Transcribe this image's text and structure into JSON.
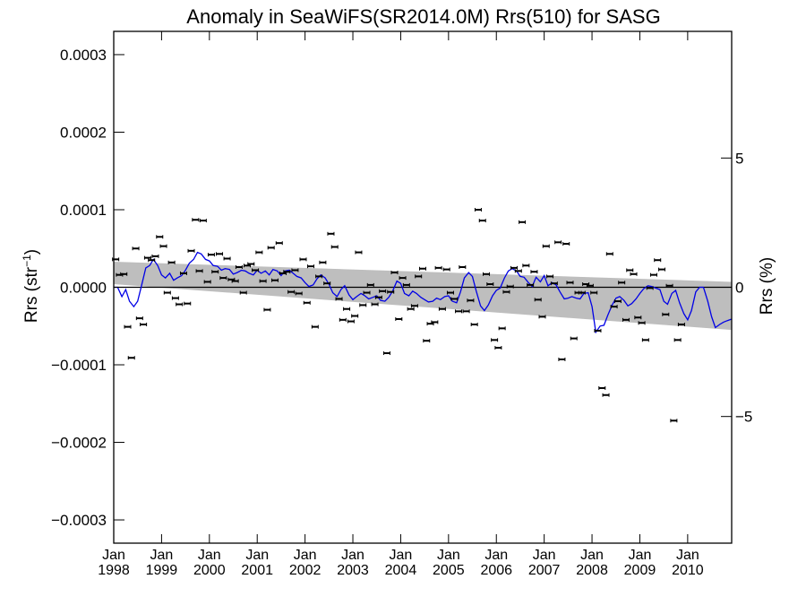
{
  "chart_data": {
    "type": "scatter",
    "title": "Anomaly in SeaWiFS(SR2014.0M) Rrs(510) for SASG",
    "ylabel_main": "Rrs (str",
    "ylabel_sup": "−1",
    "ylabel_close": ")",
    "y2label": "Rrs (%)",
    "xlim": [
      1998.0,
      2010.92
    ],
    "ylim": [
      -0.00033,
      0.00033
    ],
    "y2lim": [
      -9.9,
      9.9
    ],
    "yticks": [
      {
        "value": 0.0003,
        "label": "0.0003"
      },
      {
        "value": 0.0002,
        "label": "0.0002"
      },
      {
        "value": 0.0001,
        "label": "0.0001"
      },
      {
        "value": 0.0,
        "label": "0.0000"
      },
      {
        "value": -0.0001,
        "label": "−0.0001"
      },
      {
        "value": -0.0002,
        "label": "−0.0002"
      },
      {
        "value": -0.0003,
        "label": "−0.0003"
      }
    ],
    "y2ticks": [
      {
        "value": 5,
        "label": "5"
      },
      {
        "value": 0,
        "label": "0"
      },
      {
        "value": -5,
        "label": "−5"
      }
    ],
    "xticks": [
      {
        "value": 1998,
        "month": "Jan",
        "year": "1998"
      },
      {
        "value": 1999,
        "month": "Jan",
        "year": "1999"
      },
      {
        "value": 2000,
        "month": "Jan",
        "year": "2000"
      },
      {
        "value": 2001,
        "month": "Jan",
        "year": "2001"
      },
      {
        "value": 2002,
        "month": "Jan",
        "year": "2002"
      },
      {
        "value": 2003,
        "month": "Jan",
        "year": "2003"
      },
      {
        "value": 2004,
        "month": "Jan",
        "year": "2004"
      },
      {
        "value": 2005,
        "month": "Jan",
        "year": "2005"
      },
      {
        "value": 2006,
        "month": "Jan",
        "year": "2006"
      },
      {
        "value": 2007,
        "month": "Jan",
        "year": "2007"
      },
      {
        "value": 2008,
        "month": "Jan",
        "year": "2008"
      },
      {
        "value": 2009,
        "month": "Jan",
        "year": "2009"
      },
      {
        "value": 2010,
        "month": "Jan",
        "year": "2010"
      }
    ],
    "colors": {
      "line": "#0000e6",
      "band": "#bebebe",
      "points": "#000000",
      "zero": "#000000"
    },
    "trend_band": {
      "start": {
        "x": 1998.0,
        "upper": 3.3e-05,
        "lower": 4e-06
      },
      "end": {
        "x": 2010.92,
        "upper": 7e-06,
        "lower": -5.5e-05
      }
    },
    "points": [
      [
        1998.04,
        3.6e-05
      ],
      [
        1998.12,
        1.6e-05
      ],
      [
        1998.21,
        1.7e-05
      ],
      [
        1998.29,
        -5.1e-05
      ],
      [
        1998.37,
        -9.1e-05
      ],
      [
        1998.46,
        5e-05
      ],
      [
        1998.54,
        -4e-05
      ],
      [
        1998.62,
        -4.8e-05
      ],
      [
        1998.71,
        3.8e-05
      ],
      [
        1998.79,
        3.5e-05
      ],
      [
        1998.87,
        4e-05
      ],
      [
        1998.96,
        6.5e-05
      ],
      [
        1999.04,
        5.3e-05
      ],
      [
        1999.12,
        -7e-06
      ],
      [
        1999.21,
        3.2e-05
      ],
      [
        1999.29,
        -1.4e-05
      ],
      [
        1999.37,
        -2.2e-05
      ],
      [
        1999.46,
        1.8e-05
      ],
      [
        1999.54,
        -2.1e-05
      ],
      [
        1999.62,
        4.7e-05
      ],
      [
        1999.71,
        8.7e-05
      ],
      [
        1999.79,
        2.1e-05
      ],
      [
        1999.87,
        8.6e-05
      ],
      [
        1999.96,
        7e-06
      ],
      [
        2000.04,
        4.2e-05
      ],
      [
        2000.12,
        2e-05
      ],
      [
        2000.21,
        4.3e-05
      ],
      [
        2000.29,
        1.2e-05
      ],
      [
        2000.37,
        3.7e-05
      ],
      [
        2000.46,
        1e-05
      ],
      [
        2000.54,
        8e-06
      ],
      [
        2000.62,
        2.6e-05
      ],
      [
        2000.71,
        -7e-06
      ],
      [
        2000.79,
        2.8e-05
      ],
      [
        2000.87,
        3e-05
      ],
      [
        2000.96,
        2.2e-05
      ],
      [
        2001.04,
        4.5e-05
      ],
      [
        2001.12,
        8e-06
      ],
      [
        2001.21,
        -2.9e-05
      ],
      [
        2001.29,
        5.1e-05
      ],
      [
        2001.37,
        9e-06
      ],
      [
        2001.46,
        5.7e-05
      ],
      [
        2001.54,
        1.8e-05
      ],
      [
        2001.62,
        2e-05
      ],
      [
        2001.71,
        -6e-06
      ],
      [
        2001.79,
        2.2e-05
      ],
      [
        2001.87,
        -8e-06
      ],
      [
        2001.96,
        3.6e-05
      ],
      [
        2002.04,
        -2e-05
      ],
      [
        2002.12,
        2.7e-05
      ],
      [
        2002.21,
        -5.1e-05
      ],
      [
        2002.29,
        1.4e-05
      ],
      [
        2002.37,
        3.2e-05
      ],
      [
        2002.46,
        5e-06
      ],
      [
        2002.54,
        6.9e-05
      ],
      [
        2002.62,
        5.2e-05
      ],
      [
        2002.71,
        -1.5e-05
      ],
      [
        2002.79,
        -4.2e-05
      ],
      [
        2002.87,
        -2.8e-05
      ],
      [
        2002.96,
        -4.4e-05
      ],
      [
        2003.04,
        -3.7e-05
      ],
      [
        2003.12,
        4.5e-05
      ],
      [
        2003.21,
        -2.3e-05
      ],
      [
        2003.29,
        -7e-06
      ],
      [
        2003.37,
        3e-06
      ],
      [
        2003.46,
        -2.2e-05
      ],
      [
        2003.54,
        -1.3e-05
      ],
      [
        2003.62,
        -5e-06
      ],
      [
        2003.71,
        -8.5e-05
      ],
      [
        2003.79,
        -6e-06
      ],
      [
        2003.87,
        1.9e-05
      ],
      [
        2003.96,
        -4.1e-05
      ],
      [
        2004.04,
        1.2e-05
      ],
      [
        2004.12,
        3e-06
      ],
      [
        2004.21,
        -2.8e-05
      ],
      [
        2004.29,
        -2.4e-05
      ],
      [
        2004.37,
        1.4e-05
      ],
      [
        2004.46,
        2.4e-05
      ],
      [
        2004.54,
        -6.9e-05
      ],
      [
        2004.62,
        -4.7e-05
      ],
      [
        2004.71,
        -4.5e-05
      ],
      [
        2004.79,
        2.5e-05
      ],
      [
        2004.87,
        -2.8e-05
      ],
      [
        2004.96,
        2.3e-05
      ],
      [
        2005.04,
        -7e-06
      ],
      [
        2005.12,
        -1.5e-05
      ],
      [
        2005.21,
        -3.1e-05
      ],
      [
        2005.29,
        2.6e-05
      ],
      [
        2005.37,
        -3.1e-05
      ],
      [
        2005.46,
        -1.7e-05
      ],
      [
        2005.54,
        -4.8e-05
      ],
      [
        2005.62,
        0.0001
      ],
      [
        2005.71,
        8.6e-05
      ],
      [
        2005.79,
        1.7e-05
      ],
      [
        2005.87,
        4e-06
      ],
      [
        2005.96,
        -6.8e-05
      ],
      [
        2006.04,
        -7.8e-05
      ],
      [
        2006.12,
        -5.3e-05
      ],
      [
        2006.21,
        -6e-06
      ],
      [
        2006.29,
        1e-06
      ],
      [
        2006.37,
        2.5e-05
      ],
      [
        2006.46,
        2.1e-05
      ],
      [
        2006.54,
        8.4e-05
      ],
      [
        2006.62,
        2.8e-05
      ],
      [
        2006.71,
        3e-06
      ],
      [
        2006.79,
        2e-05
      ],
      [
        2006.87,
        -1.6e-05
      ],
      [
        2006.96,
        -3.8e-05
      ],
      [
        2007.04,
        5.3e-05
      ],
      [
        2007.12,
        1.4e-05
      ],
      [
        2007.21,
        5e-06
      ],
      [
        2007.29,
        5.8e-05
      ],
      [
        2007.37,
        -9.3e-05
      ],
      [
        2007.46,
        5.6e-05
      ],
      [
        2007.54,
        6e-06
      ],
      [
        2007.62,
        -6.6e-05
      ],
      [
        2007.71,
        -7e-06
      ],
      [
        2007.79,
        -7e-06
      ],
      [
        2007.87,
        4e-06
      ],
      [
        2007.96,
        2e-06
      ],
      [
        2008.04,
        -7e-06
      ],
      [
        2008.12,
        -5.6e-05
      ],
      [
        2008.21,
        -0.00013
      ],
      [
        2008.29,
        -0.000139
      ],
      [
        2008.37,
        4.3e-05
      ],
      [
        2008.46,
        -2.5e-05
      ],
      [
        2008.54,
        -1.8e-05
      ],
      [
        2008.62,
        6e-06
      ],
      [
        2008.71,
        -4.2e-05
      ],
      [
        2008.79,
        2.2e-05
      ],
      [
        2008.87,
        1.7e-05
      ],
      [
        2008.96,
        -3.9e-05
      ],
      [
        2009.04,
        -4.6e-05
      ],
      [
        2009.12,
        -6.8e-05
      ],
      [
        2009.21,
        -1e-06
      ],
      [
        2009.29,
        1.6e-05
      ],
      [
        2009.37,
        3.5e-05
      ],
      [
        2009.46,
        2.3e-05
      ],
      [
        2009.54,
        -3.5e-05
      ],
      [
        2009.62,
        2e-06
      ],
      [
        2009.71,
        -0.000172
      ],
      [
        2009.79,
        -6.8e-05
      ],
      [
        2009.87,
        -4.8e-05
      ]
    ],
    "running_mean": [
      [
        1998.0,
        0.0
      ],
      [
        1998.08,
        0.0
      ],
      [
        1998.17,
        -1.2e-05
      ],
      [
        1998.25,
        -3e-06
      ],
      [
        1998.33,
        -1.8e-05
      ],
      [
        1998.42,
        -2.5e-05
      ],
      [
        1998.5,
        -1.8e-05
      ],
      [
        1998.58,
        2e-06
      ],
      [
        1998.67,
        2.5e-05
      ],
      [
        1998.75,
        2.8e-05
      ],
      [
        1998.83,
        3.6e-05
      ],
      [
        1998.92,
        2.8e-05
      ],
      [
        1999.0,
        1.6e-05
      ],
      [
        1999.08,
        1.2e-05
      ],
      [
        1999.17,
        1.8e-05
      ],
      [
        1999.25,
        9e-06
      ],
      [
        1999.33,
        1.2e-05
      ],
      [
        1999.42,
        1.5e-05
      ],
      [
        1999.5,
        2.2e-05
      ],
      [
        1999.58,
        3.1e-05
      ],
      [
        1999.67,
        3.6e-05
      ],
      [
        1999.75,
        4.5e-05
      ],
      [
        1999.83,
        4.3e-05
      ],
      [
        1999.92,
        3.6e-05
      ],
      [
        2000.0,
        3.4e-05
      ],
      [
        2000.08,
        2.8e-05
      ],
      [
        2000.17,
        2.7e-05
      ],
      [
        2000.25,
        2.2e-05
      ],
      [
        2000.33,
        2.4e-05
      ],
      [
        2000.42,
        2.3e-05
      ],
      [
        2000.5,
        1.7e-05
      ],
      [
        2000.58,
        1.9e-05
      ],
      [
        2000.67,
        2.2e-05
      ],
      [
        2000.75,
        2.1e-05
      ],
      [
        2000.83,
        1.8e-05
      ],
      [
        2000.92,
        1.6e-05
      ],
      [
        2001.0,
        2.2e-05
      ],
      [
        2001.08,
        1.8e-05
      ],
      [
        2001.17,
        2.1e-05
      ],
      [
        2001.25,
        1.6e-05
      ],
      [
        2001.33,
        2.3e-05
      ],
      [
        2001.42,
        2.1e-05
      ],
      [
        2001.5,
        1.5e-05
      ],
      [
        2001.58,
        2.1e-05
      ],
      [
        2001.67,
        2.2e-05
      ],
      [
        2001.75,
        1.8e-05
      ],
      [
        2001.83,
        1.4e-05
      ],
      [
        2001.92,
        1.2e-05
      ],
      [
        2002.0,
        6e-06
      ],
      [
        2002.08,
        1e-06
      ],
      [
        2002.17,
        3e-06
      ],
      [
        2002.25,
        1.1e-05
      ],
      [
        2002.33,
        1.6e-05
      ],
      [
        2002.42,
        1.2e-05
      ],
      [
        2002.5,
        4e-06
      ],
      [
        2002.58,
        -7e-06
      ],
      [
        2002.67,
        -1.2e-05
      ],
      [
        2002.75,
        -3e-06
      ],
      [
        2002.83,
        2e-06
      ],
      [
        2002.92,
        -1e-05
      ],
      [
        2003.0,
        -1.6e-05
      ],
      [
        2003.08,
        -1.2e-05
      ],
      [
        2003.17,
        -8e-06
      ],
      [
        2003.25,
        -1.1e-05
      ],
      [
        2003.33,
        -1.5e-05
      ],
      [
        2003.42,
        -1.3e-05
      ],
      [
        2003.5,
        -1.1e-05
      ],
      [
        2003.58,
        -1.7e-05
      ],
      [
        2003.67,
        -1.8e-05
      ],
      [
        2003.75,
        -1.3e-05
      ],
      [
        2003.83,
        -5e-06
      ],
      [
        2003.92,
        8e-06
      ],
      [
        2004.0,
        5e-06
      ],
      [
        2004.08,
        -8e-06
      ],
      [
        2004.17,
        -1.1e-05
      ],
      [
        2004.25,
        -5e-06
      ],
      [
        2004.33,
        -8e-06
      ],
      [
        2004.42,
        -1.3e-05
      ],
      [
        2004.5,
        -1.6e-05
      ],
      [
        2004.58,
        -1.9e-05
      ],
      [
        2004.67,
        -1.8e-05
      ],
      [
        2004.75,
        -1.4e-05
      ],
      [
        2004.83,
        -1.6e-05
      ],
      [
        2004.92,
        -1.2e-05
      ],
      [
        2005.0,
        -1.1e-05
      ],
      [
        2005.08,
        -1.8e-05
      ],
      [
        2005.17,
        -2e-05
      ],
      [
        2005.25,
        -6e-06
      ],
      [
        2005.33,
        1.2e-05
      ],
      [
        2005.42,
        1.9e-05
      ],
      [
        2005.5,
        1.4e-05
      ],
      [
        2005.58,
        -5e-06
      ],
      [
        2005.67,
        -2.4e-05
      ],
      [
        2005.75,
        -3e-05
      ],
      [
        2005.83,
        -2.3e-05
      ],
      [
        2005.92,
        -1.1e-05
      ],
      [
        2006.0,
        -4e-06
      ],
      [
        2006.08,
        -1e-06
      ],
      [
        2006.17,
        1.2e-05
      ],
      [
        2006.25,
        2.1e-05
      ],
      [
        2006.33,
        2.4e-05
      ],
      [
        2006.42,
        2.1e-05
      ],
      [
        2006.5,
        1.4e-05
      ],
      [
        2006.58,
        1.3e-05
      ],
      [
        2006.67,
        6e-06
      ],
      [
        2006.75,
        1e-06
      ],
      [
        2006.83,
        1.3e-05
      ],
      [
        2006.92,
        7e-06
      ],
      [
        2007.0,
        1.5e-05
      ],
      [
        2007.08,
        2e-06
      ],
      [
        2007.17,
        6e-06
      ],
      [
        2007.25,
        3e-06
      ],
      [
        2007.33,
        -6e-06
      ],
      [
        2007.42,
        -1.5e-05
      ],
      [
        2007.5,
        -1.4e-05
      ],
      [
        2007.58,
        -1.2e-05
      ],
      [
        2007.67,
        -1.4e-05
      ],
      [
        2007.75,
        -1.5e-05
      ],
      [
        2007.83,
        -8e-06
      ],
      [
        2007.92,
        -7e-06
      ],
      [
        2008.0,
        -2.5e-05
      ],
      [
        2008.08,
        -5.8e-05
      ],
      [
        2008.17,
        -5e-05
      ],
      [
        2008.25,
        -4.9e-05
      ],
      [
        2008.33,
        -3.6e-05
      ],
      [
        2008.42,
        -2.3e-05
      ],
      [
        2008.5,
        -1.4e-05
      ],
      [
        2008.58,
        -1.2e-05
      ],
      [
        2008.67,
        -1.7e-05
      ],
      [
        2008.75,
        -2.4e-05
      ],
      [
        2008.83,
        -2.1e-05
      ],
      [
        2008.92,
        -1.5e-05
      ],
      [
        2009.0,
        -8e-06
      ],
      [
        2009.08,
        -2e-06
      ],
      [
        2009.17,
        2e-06
      ],
      [
        2009.25,
        1e-06
      ],
      [
        2009.33,
        -1e-06
      ],
      [
        2009.42,
        -3e-06
      ],
      [
        2009.5,
        -1.8e-05
      ],
      [
        2009.58,
        -2.2e-05
      ],
      [
        2009.67,
        -8e-06
      ],
      [
        2009.75,
        -4e-06
      ],
      [
        2009.83,
        -2e-05
      ],
      [
        2009.92,
        -3.4e-05
      ],
      [
        2010.0,
        -4.2e-05
      ],
      [
        2010.08,
        -3e-05
      ],
      [
        2010.17,
        -6e-06
      ],
      [
        2010.25,
        0.0
      ],
      [
        2010.33,
        0.0
      ],
      [
        2010.42,
        -1.8e-05
      ],
      [
        2010.5,
        -3.8e-05
      ],
      [
        2010.58,
        -5.2e-05
      ],
      [
        2010.67,
        -4.8e-05
      ],
      [
        2010.75,
        -4.5e-05
      ],
      [
        2010.83,
        -4.3e-05
      ],
      [
        2010.92,
        -4.1e-05
      ]
    ]
  }
}
